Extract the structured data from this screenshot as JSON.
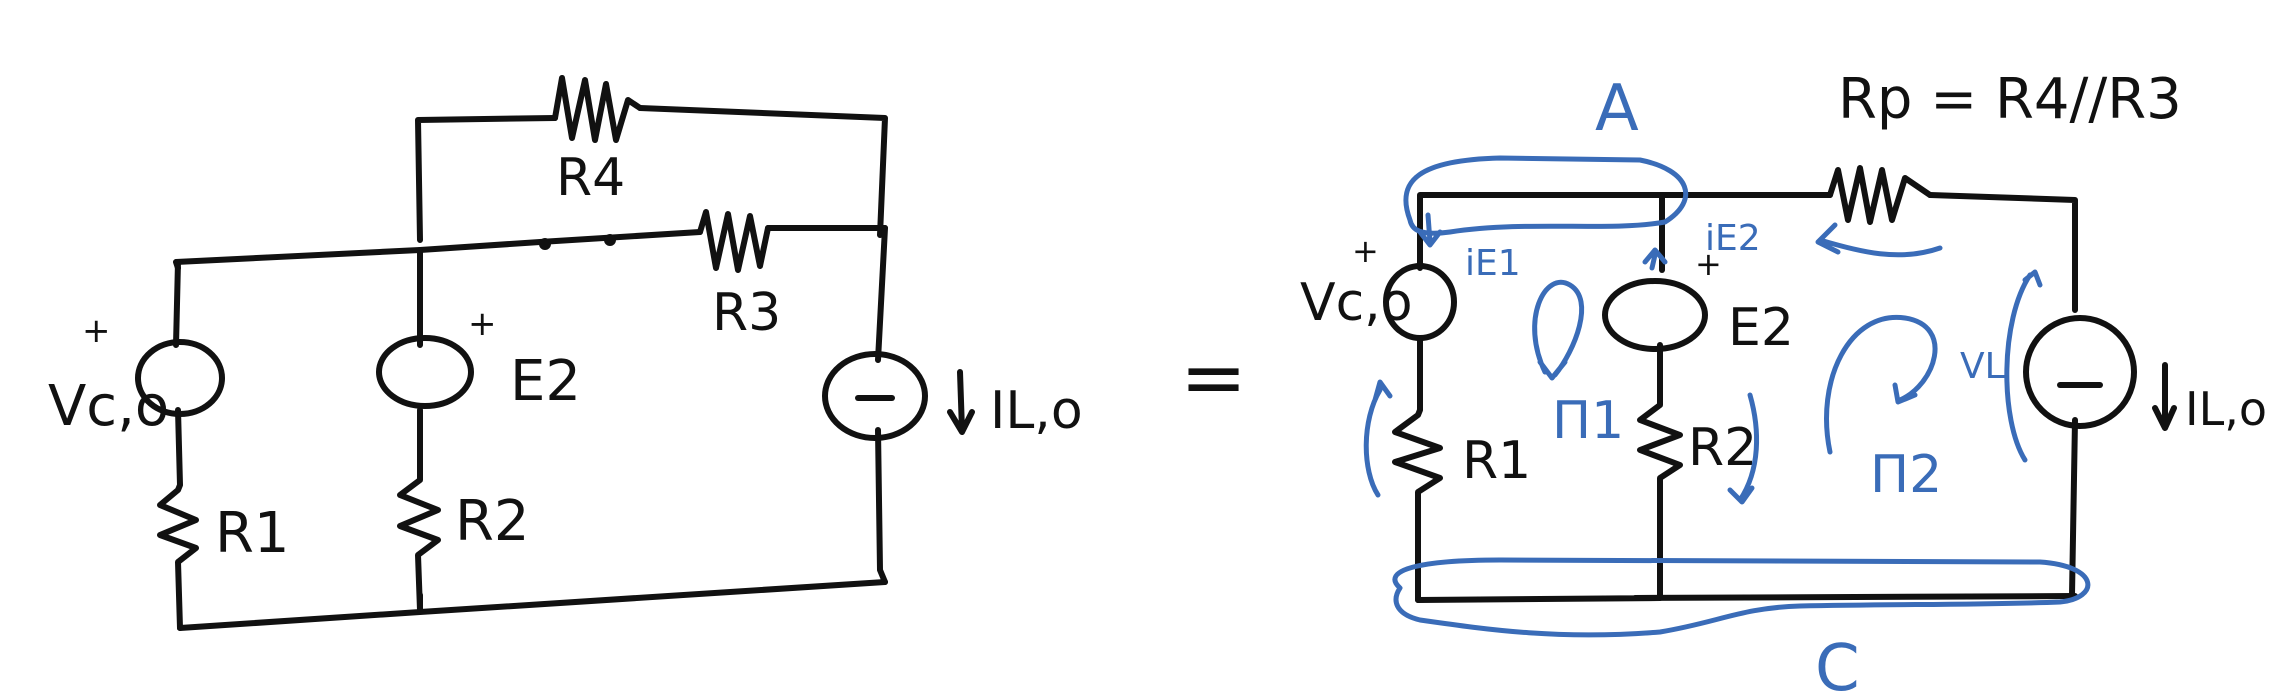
{
  "colors": {
    "ink": "#111111",
    "annotation": "#3a6cb8",
    "background": "#ffffff"
  },
  "left_circuit": {
    "vc0": "Vc,o",
    "vc0_plus": "+",
    "e2": "E2",
    "e2_plus": "+",
    "r1": "R1",
    "r2": "R2",
    "r3": "R3",
    "r4": "R4",
    "il0": "IL,o"
  },
  "equals": "=",
  "right_circuit": {
    "rp_formula": "Rp = R4//R3",
    "vc0": "Vc,o",
    "vc0_plus": "+",
    "e2": "E2",
    "e2_plus": "+",
    "r1": "R1",
    "r2": "R2",
    "il0": "IL,o"
  },
  "annotations": {
    "node_a": "A",
    "node_c": "C",
    "mesh_1": "Π1",
    "mesh_2": "Π2",
    "i_e1": "iE1",
    "i_e2": "iE2",
    "v_l": "VL"
  }
}
